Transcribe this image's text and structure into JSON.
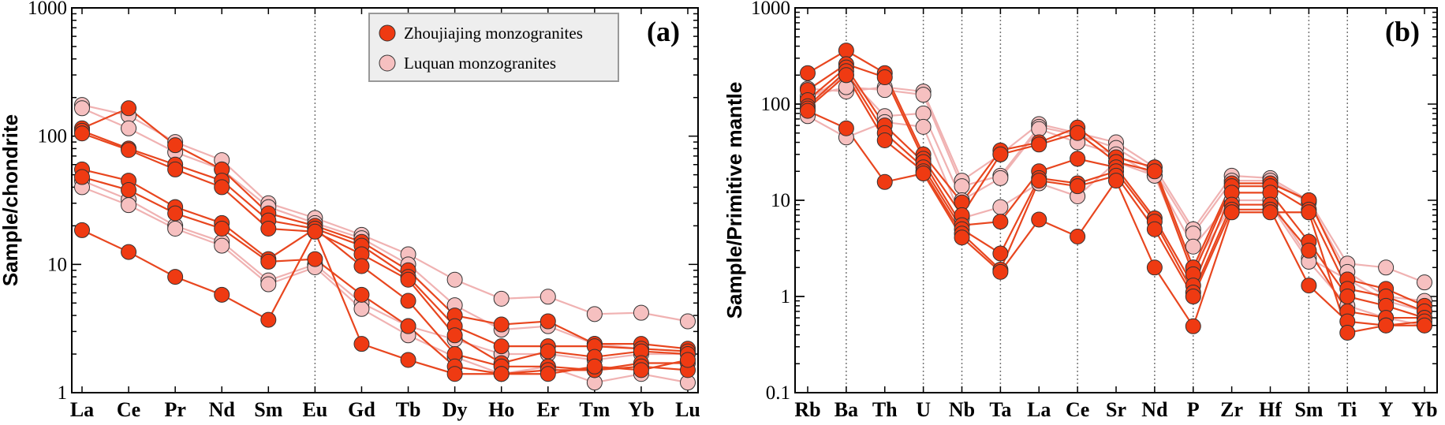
{
  "colors": {
    "zhou_line": "#e8461f",
    "zhou_fill": "#ef3a12",
    "luquan_line": "#f0b2b2",
    "luquan_fill": "#f6c0c0",
    "marker_edge": "#333333",
    "divider": "#777777",
    "legend_bg": "#eeeeee"
  },
  "legend": {
    "items": [
      {
        "label": "Zhoujiajing monzogranites",
        "series": "zhou"
      },
      {
        "label": "Luquan monzogranites",
        "series": "luquan"
      }
    ]
  },
  "chart_data": [
    {
      "type": "line",
      "panel_label": "(a)",
      "ylabel": "Sample/chondrite",
      "xlabel": "",
      "yscale": "log",
      "ylim": [
        1,
        1000
      ],
      "yticks": [
        "1",
        "10",
        "100",
        "1000"
      ],
      "categories": [
        "La",
        "Ce",
        "Pr",
        "Nd",
        "Sm",
        "Eu",
        "Gd",
        "Tb",
        "Dy",
        "Ho",
        "Er",
        "Tm",
        "Yb",
        "Lu"
      ],
      "divider_after": [
        "Eu"
      ],
      "legend_position": "top-center",
      "series": [
        {
          "group": "luquan",
          "values": [
            175,
            145,
            90,
            65,
            30,
            23,
            17,
            12,
            7.6,
            5.4,
            5.6,
            4.1,
            4.2,
            3.6
          ]
        },
        {
          "group": "luquan",
          "values": [
            165,
            115,
            75,
            55,
            28,
            21,
            16,
            10,
            4.8,
            3.1,
            3.3,
            2.4,
            2.2,
            2.1
          ]
        },
        {
          "group": "luquan",
          "values": [
            45,
            32,
            20,
            15,
            7.5,
            10,
            5.0,
            3.3,
            2.6,
            2.0,
            2.0,
            1.8,
            2.0,
            2.0
          ]
        },
        {
          "group": "luquan",
          "values": [
            40,
            29,
            19,
            14,
            7.0,
            9.5,
            4.5,
            2.8,
            1.9,
            1.4,
            1.6,
            1.2,
            1.4,
            1.2
          ]
        },
        {
          "group": "zhou",
          "values": [
            115,
            165,
            85,
            55,
            25,
            20,
            15,
            9.0,
            4.0,
            3.4,
            3.6,
            2.4,
            2.4,
            2.2
          ]
        },
        {
          "group": "zhou",
          "values": [
            110,
            80,
            60,
            45,
            22,
            19,
            14,
            8.0,
            3.3,
            2.3,
            2.3,
            2.3,
            2.2,
            2.1
          ]
        },
        {
          "group": "zhou",
          "values": [
            105,
            78,
            55,
            40,
            19,
            18,
            12,
            7.6,
            2.8,
            1.7,
            2.1,
            1.9,
            2.1,
            2.0
          ]
        },
        {
          "group": "zhou",
          "values": [
            55,
            45,
            28,
            21,
            11,
            19,
            9.7,
            5.2,
            2.0,
            1.6,
            1.6,
            1.5,
            1.7,
            1.7
          ]
        },
        {
          "group": "zhou",
          "values": [
            48,
            38,
            25,
            19,
            10.5,
            11,
            5.8,
            3.3,
            1.6,
            1.4,
            1.5,
            1.5,
            1.6,
            1.5
          ]
        },
        {
          "group": "zhou",
          "values": [
            18.5,
            12.5,
            8.0,
            5.8,
            3.7,
            18,
            2.4,
            1.8,
            1.4,
            1.4,
            1.4,
            1.6,
            1.5,
            1.8
          ]
        }
      ]
    },
    {
      "type": "line",
      "panel_label": "(b)",
      "ylabel": "Sample/Primitive mantle",
      "xlabel": "",
      "yscale": "log",
      "ylim": [
        0.1,
        1000
      ],
      "yticks": [
        "0.1",
        "1",
        "10",
        "100",
        "1000"
      ],
      "categories": [
        "Rb",
        "Ba",
        "Th",
        "U",
        "Nb",
        "Ta",
        "La",
        "Ce",
        "Sr",
        "Nd",
        "P",
        "Zr",
        "Hf",
        "Sm",
        "Ti",
        "Y",
        "Yb"
      ],
      "divider_after": [
        "Ba",
        "U",
        "Nb",
        "Ta",
        "Ce",
        "Nd",
        "P",
        "Sm",
        "Ti"
      ],
      "series": [
        {
          "group": "luquan",
          "values": [
            145,
            135,
            150,
            135,
            16,
            30,
            62,
            50,
            40,
            22,
            5.0,
            18,
            17,
            10,
            2.2,
            2.0,
            1.4
          ]
        },
        {
          "group": "luquan",
          "values": [
            120,
            150,
            140,
            125,
            14,
            18,
            58,
            48,
            35,
            20,
            4.5,
            16,
            16,
            9.5,
            1.8,
            1.0,
            0.9
          ]
        },
        {
          "group": "luquan",
          "values": [
            110,
            200,
            75,
            80,
            10,
            17,
            55,
            40,
            30,
            18,
            3.3,
            10,
            10,
            2.5,
            1.5,
            0.9,
            0.7
          ]
        },
        {
          "group": "luquan",
          "values": [
            75,
            45,
            65,
            58,
            6.5,
            8.5,
            15,
            11,
            25,
            18,
            2.0,
            9,
            9,
            2.3,
            0.8,
            0.6,
            0.5
          ]
        },
        {
          "group": "zhou",
          "values": [
            210,
            360,
            210,
            30,
            9.5,
            33,
            40,
            57,
            28,
            22,
            2.0,
            15,
            15,
            10,
            1.5,
            1.2,
            0.8
          ]
        },
        {
          "group": "zhou",
          "values": [
            140,
            260,
            190,
            27,
            7,
            30,
            38,
            50,
            25,
            20,
            1.7,
            14,
            14,
            8,
            1.2,
            1.0,
            0.7
          ]
        },
        {
          "group": "zhou",
          "values": [
            110,
            240,
            60,
            25,
            5.5,
            6,
            20,
            27,
            22,
            6.5,
            1.3,
            12,
            12,
            3.7,
            1.0,
            0.8,
            0.6
          ]
        },
        {
          "group": "zhou",
          "values": [
            95,
            220,
            50,
            22,
            5.0,
            2.8,
            17,
            15,
            20,
            6.0,
            1.1,
            9,
            9,
            3.0,
            0.7,
            0.6,
            0.6
          ]
        },
        {
          "group": "zhou",
          "values": [
            90,
            200,
            42,
            20,
            4.5,
            1.9,
            16,
            14,
            18,
            5.0,
            1.0,
            8,
            8,
            1.3,
            0.55,
            0.5,
            0.55
          ]
        },
        {
          "group": "zhou",
          "values": [
            85,
            56,
            15.5,
            19,
            4.1,
            1.8,
            6.3,
            4.2,
            16,
            2.0,
            0.49,
            7.5,
            7.5,
            7.5,
            0.42,
            0.5,
            0.5
          ]
        }
      ]
    }
  ]
}
